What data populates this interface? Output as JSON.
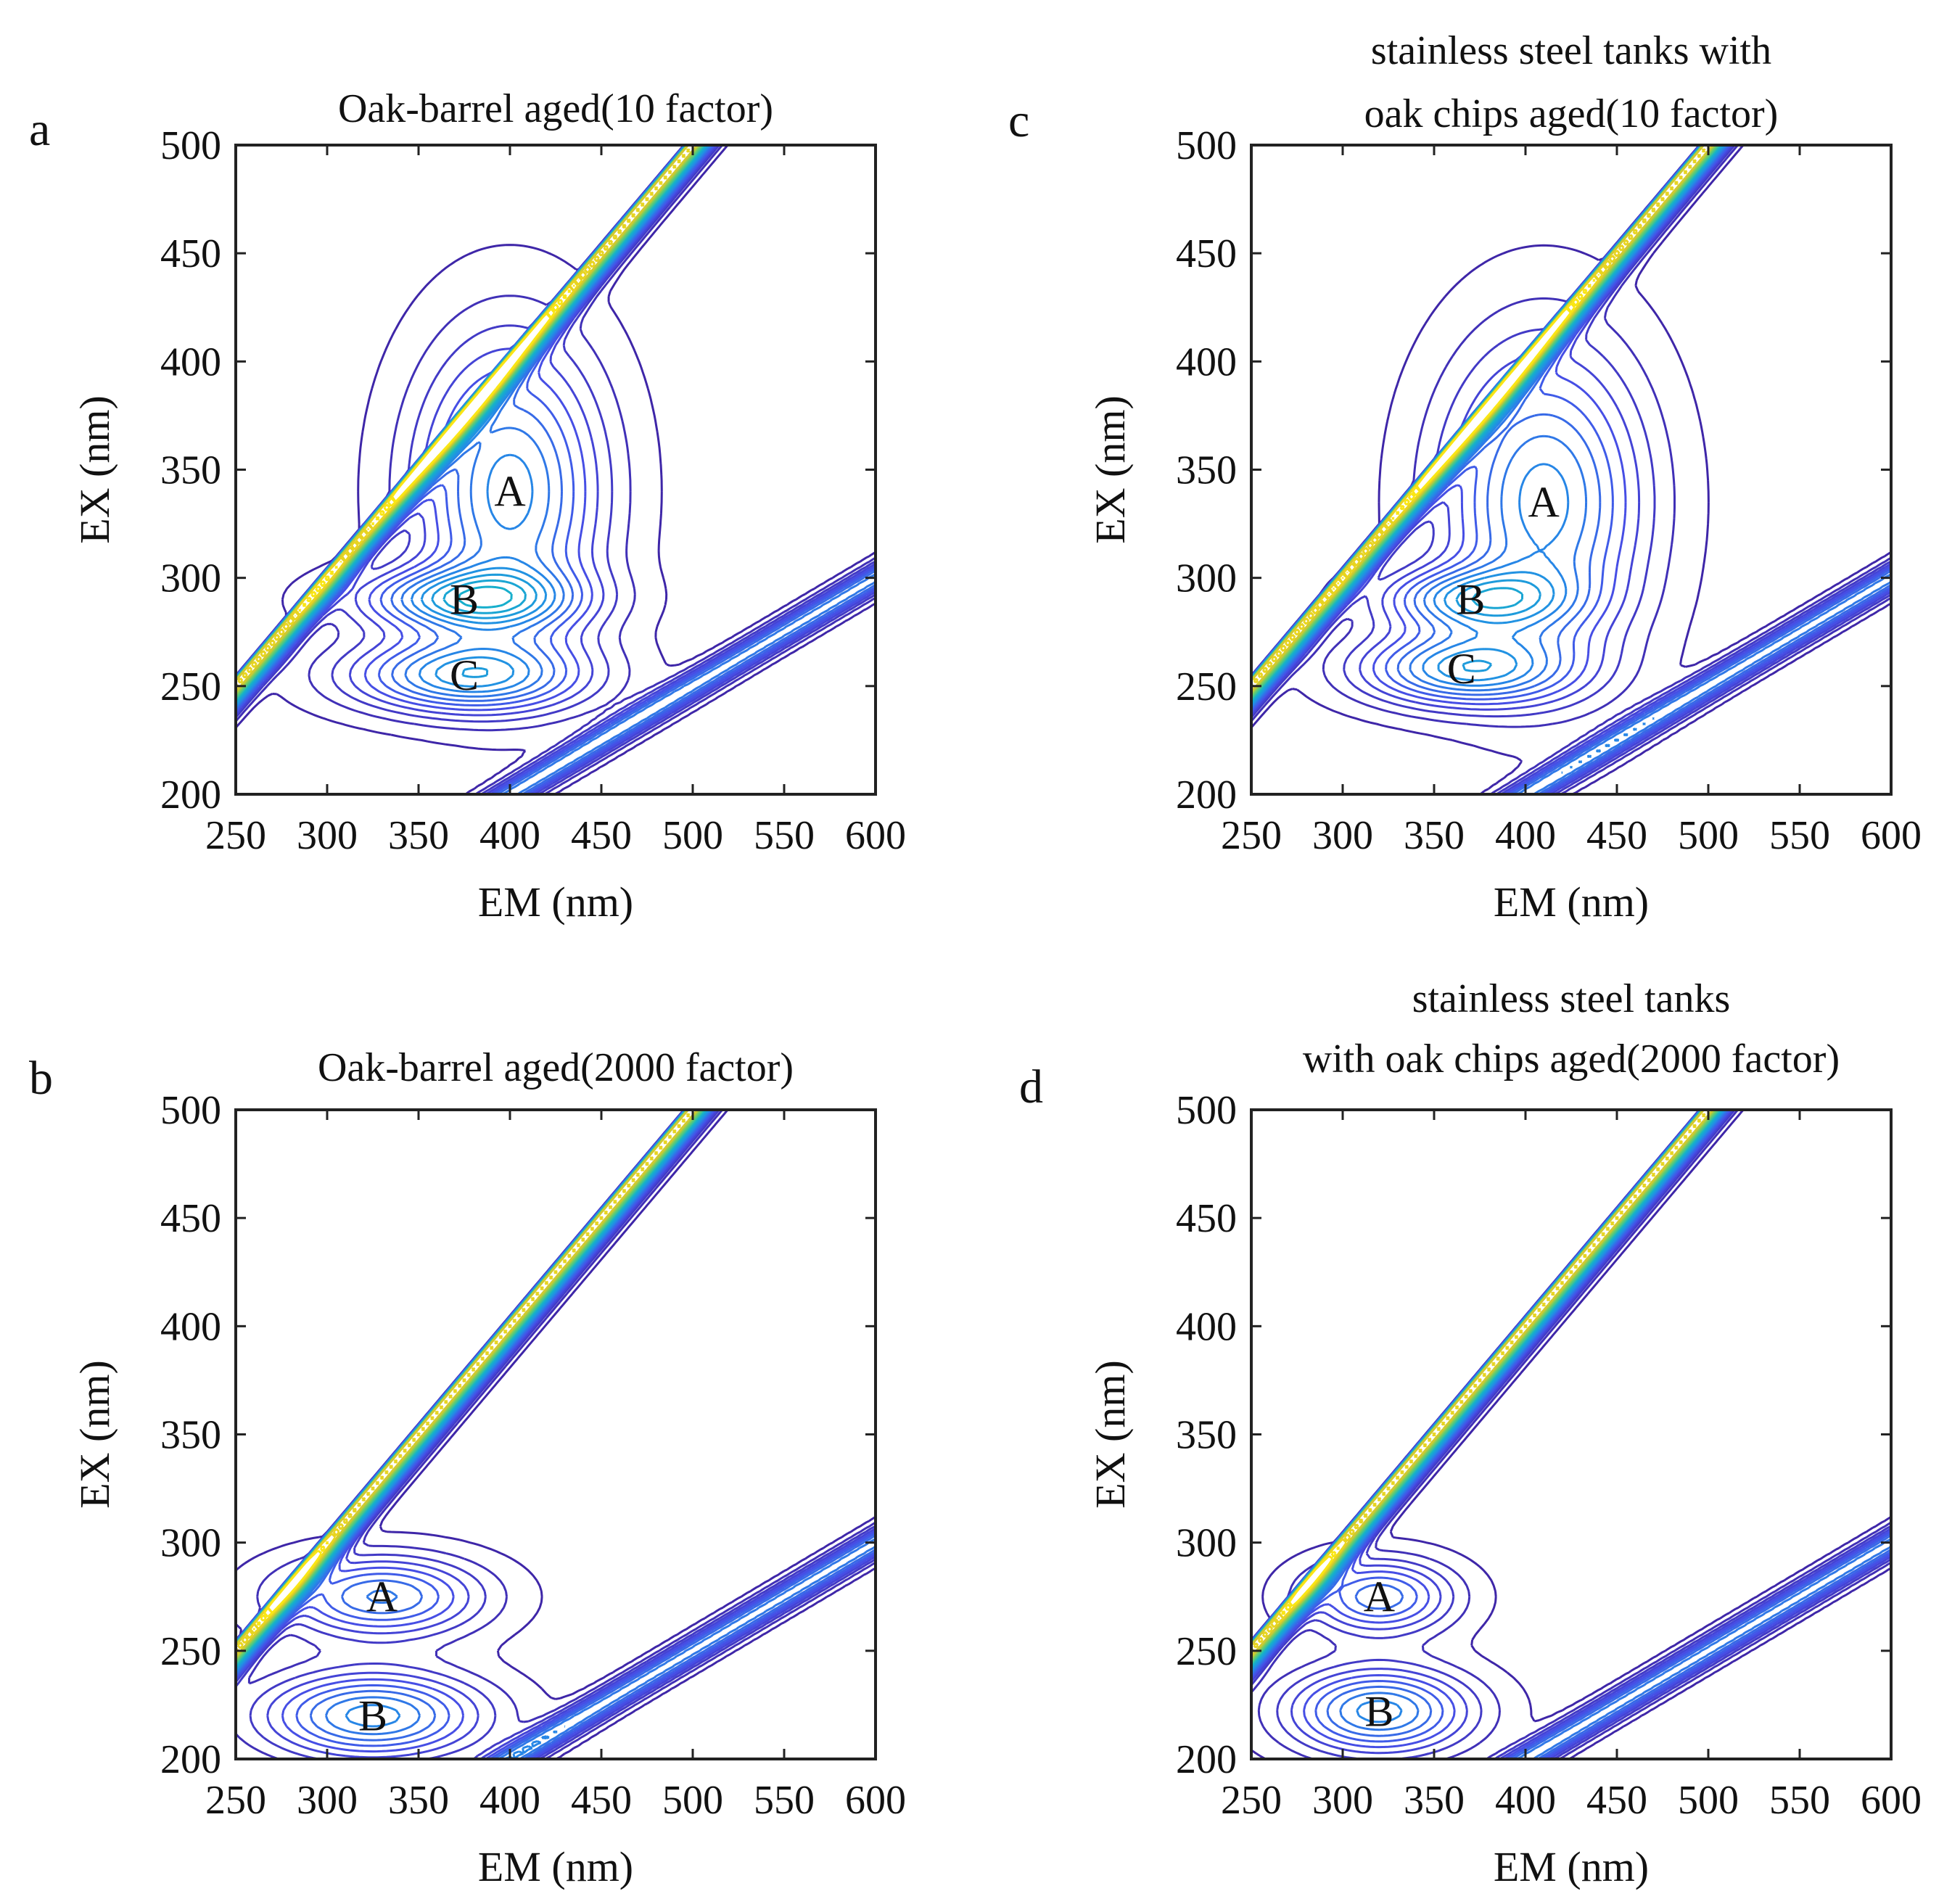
{
  "chart_data": [
    {
      "panel_label": "a",
      "type": "contour",
      "title_lines": [
        "Oak-barrel aged(10 factor)"
      ],
      "xlabel": "EM (nm)",
      "ylabel": "EX (nm)",
      "xlim": [
        250,
        600
      ],
      "ylim": [
        200,
        500
      ],
      "xticks": [
        250,
        300,
        350,
        400,
        450,
        500,
        550,
        600
      ],
      "yticks": [
        200,
        250,
        300,
        350,
        400,
        450,
        500
      ],
      "scatter_slope": 1,
      "second_order": true,
      "peaks": [
        {
          "label": "A",
          "em": 400,
          "ex": 340,
          "sx": 35,
          "sy": 48,
          "amp": 1.0
        },
        {
          "label": "B",
          "em": 375,
          "ex": 290,
          "sx": 42,
          "sy": 10,
          "amp": 0.95
        },
        {
          "label": "C",
          "em": 375,
          "ex": 255,
          "sx": 45,
          "sy": 12,
          "amp": 1.0
        }
      ]
    },
    {
      "panel_label": "b",
      "type": "contour",
      "title_lines": [
        "Oak-barrel aged(2000 factor)"
      ],
      "xlabel": "EM (nm)",
      "ylabel": "EX (nm)",
      "xlim": [
        250,
        600
      ],
      "ylim": [
        200,
        500
      ],
      "xticks": [
        250,
        300,
        350,
        400,
        450,
        500,
        550,
        600
      ],
      "yticks": [
        200,
        250,
        300,
        350,
        400,
        450,
        500
      ],
      "scatter_slope": 1,
      "second_order": true,
      "peaks": [
        {
          "label": "A",
          "em": 330,
          "ex": 275,
          "sx": 38,
          "sy": 13,
          "amp": 0.85
        },
        {
          "label": "B",
          "em": 325,
          "ex": 220,
          "sx": 42,
          "sy": 14,
          "amp": 1.0
        }
      ]
    },
    {
      "panel_label": "c",
      "type": "contour",
      "title_lines": [
        "stainless steel tanks with",
        "oak chips aged(10 factor)"
      ],
      "xlabel": "EM (nm)",
      "ylabel": "EX (nm)",
      "xlim": [
        250,
        600
      ],
      "ylim": [
        200,
        500
      ],
      "xticks": [
        250,
        300,
        350,
        400,
        450,
        500,
        550,
        600
      ],
      "yticks": [
        200,
        250,
        300,
        350,
        400,
        450,
        500
      ],
      "scatter_slope": 1,
      "second_order": true,
      "peaks": [
        {
          "label": "A",
          "em": 410,
          "ex": 335,
          "sx": 38,
          "sy": 50,
          "amp": 1.0
        },
        {
          "label": "B",
          "em": 370,
          "ex": 290,
          "sx": 35,
          "sy": 10,
          "amp": 0.85
        },
        {
          "label": "C",
          "em": 365,
          "ex": 258,
          "sx": 40,
          "sy": 12,
          "amp": 1.0
        }
      ]
    },
    {
      "panel_label": "d",
      "type": "contour",
      "title_lines": [
        "stainless steel tanks",
        "with oak chips aged(2000 factor)"
      ],
      "xlabel": "EM (nm)",
      "ylabel": "EX (nm)",
      "xlim": [
        250,
        600
      ],
      "ylim": [
        200,
        500
      ],
      "xticks": [
        250,
        300,
        350,
        400,
        450,
        500,
        550,
        600
      ],
      "yticks": [
        200,
        250,
        300,
        350,
        400,
        450,
        500
      ],
      "scatter_slope": 1,
      "second_order": true,
      "peaks": [
        {
          "label": "A",
          "em": 320,
          "ex": 275,
          "sx": 28,
          "sy": 12,
          "amp": 0.8
        },
        {
          "label": "B",
          "em": 320,
          "ex": 222,
          "sx": 35,
          "sy": 14,
          "amp": 1.0
        }
      ]
    }
  ]
}
